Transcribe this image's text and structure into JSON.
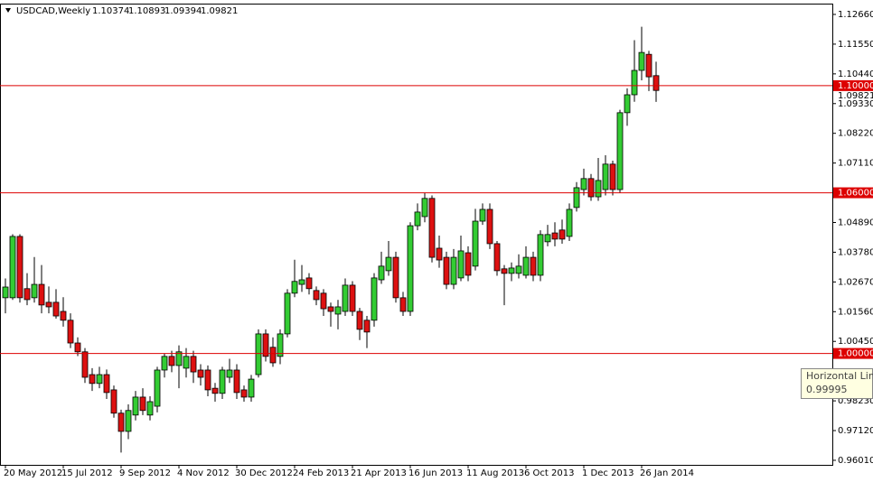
{
  "chart_data": {
    "type": "candlestick",
    "title": "USDCAD,Weekly",
    "categories": [
      "20 May 2012",
      null,
      null,
      null,
      null,
      null,
      null,
      null,
      "15 Jul 2012",
      null,
      null,
      null,
      null,
      null,
      null,
      null,
      "9 Sep 2012",
      null,
      null,
      null,
      null,
      null,
      null,
      null,
      "4 Nov 2012",
      null,
      null,
      null,
      null,
      null,
      null,
      null,
      "30 Dec 2012",
      null,
      null,
      null,
      null,
      null,
      null,
      null,
      "24 Feb 2013",
      null,
      null,
      null,
      null,
      null,
      null,
      null,
      "21 Apr 2013",
      null,
      null,
      null,
      null,
      null,
      null,
      null,
      "16 Jun 2013",
      null,
      null,
      null,
      null,
      null,
      null,
      null,
      "11 Aug 2013",
      null,
      null,
      null,
      null,
      null,
      null,
      null,
      "6 Oct 2013",
      null,
      null,
      null,
      null,
      null,
      null,
      null,
      "1 Dec 2013",
      null,
      null,
      null,
      null,
      null,
      null,
      null,
      "26 Jan 2014",
      null,
      null
    ],
    "ohlc": [
      [
        1.0208,
        1.028,
        1.015,
        1.0248
      ],
      [
        1.0208,
        1.0445,
        1.02,
        1.0437
      ],
      [
        1.0437,
        1.0445,
        1.019,
        1.0208
      ],
      [
        1.0242,
        1.03,
        1.018,
        1.0201
      ],
      [
        1.0208,
        1.036,
        1.019,
        1.0258
      ],
      [
        1.0258,
        1.033,
        1.015,
        1.0181
      ],
      [
        1.0191,
        1.025,
        1.015,
        1.0174
      ],
      [
        1.0191,
        1.024,
        1.013,
        1.014
      ],
      [
        1.0157,
        1.021,
        1.01,
        1.0124
      ],
      [
        1.0124,
        1.015,
        1.002,
        1.0039
      ],
      [
        1.0039,
        1.006,
        0.999,
        1.0006
      ],
      [
        1.0006,
        1.002,
        0.989,
        0.9911
      ],
      [
        0.9921,
        0.9945,
        0.986,
        0.9888
      ],
      [
        0.9888,
        0.995,
        0.987,
        0.9921
      ],
      [
        0.9921,
        0.994,
        0.983,
        0.9854
      ],
      [
        0.9864,
        0.988,
        0.976,
        0.9777
      ],
      [
        0.9777,
        0.979,
        0.963,
        0.9709
      ],
      [
        0.9709,
        0.981,
        0.968,
        0.9787
      ],
      [
        0.977,
        0.986,
        0.975,
        0.9837
      ],
      [
        0.9837,
        0.987,
        0.977,
        0.9787
      ],
      [
        0.977,
        0.984,
        0.975,
        0.982
      ],
      [
        0.9803,
        0.995,
        0.978,
        0.9938
      ],
      [
        0.9938,
        1.0,
        0.991,
        0.9989
      ],
      [
        0.9989,
        1.001,
        0.993,
        0.9955
      ],
      [
        0.9955,
        1.003,
        0.987,
        1.0006
      ],
      [
        0.9945,
        1.002,
        0.991,
        0.9989
      ],
      [
        0.9989,
        1.001,
        0.989,
        0.9931
      ],
      [
        0.9938,
        0.996,
        0.988,
        0.9911
      ],
      [
        0.9938,
        0.9955,
        0.984,
        0.9864
      ],
      [
        0.987,
        0.989,
        0.982,
        0.9851
      ],
      [
        0.9851,
        0.995,
        0.983,
        0.9938
      ],
      [
        0.9911,
        0.998,
        0.989,
        0.9938
      ],
      [
        0.9938,
        0.996,
        0.983,
        0.9854
      ],
      [
        0.9864,
        0.988,
        0.982,
        0.9837
      ],
      [
        0.9837,
        0.992,
        0.982,
        0.9904
      ],
      [
        0.9921,
        1.009,
        0.991,
        1.0073
      ],
      [
        1.0073,
        1.009,
        0.997,
        0.9989
      ],
      [
        1.0023,
        1.006,
        0.995,
        0.9965
      ],
      [
        0.9989,
        1.009,
        0.996,
        1.0073
      ],
      [
        1.0073,
        1.024,
        1.006,
        1.0225
      ],
      [
        1.0225,
        1.035,
        1.021,
        1.0269
      ],
      [
        1.0258,
        1.033,
        1.023,
        1.0275
      ],
      [
        1.0282,
        1.03,
        1.022,
        1.0242
      ],
      [
        1.0235,
        1.025,
        1.018,
        1.0201
      ],
      [
        1.0225,
        1.024,
        1.014,
        1.0167
      ],
      [
        1.0174,
        1.019,
        1.01,
        1.0157
      ],
      [
        1.0147,
        1.02,
        1.009,
        1.0174
      ],
      [
        1.0157,
        1.028,
        1.014,
        1.0255
      ],
      [
        1.0255,
        1.027,
        1.014,
        1.0157
      ],
      [
        1.0157,
        1.017,
        1.005,
        1.009
      ],
      [
        1.0124,
        1.014,
        1.002,
        1.008
      ],
      [
        1.0124,
        1.03,
        1.01,
        1.0282
      ],
      [
        1.0275,
        1.038,
        1.026,
        1.0326
      ],
      [
        1.0309,
        1.042,
        1.029,
        1.0359
      ],
      [
        1.0359,
        1.038,
        1.019,
        1.0208
      ],
      [
        1.0208,
        1.023,
        1.014,
        1.0157
      ],
      [
        1.0157,
        1.049,
        1.014,
        1.0477
      ],
      [
        1.0477,
        1.056,
        1.046,
        1.0528
      ],
      [
        1.0511,
        1.06,
        1.049,
        1.0579
      ],
      [
        1.0579,
        1.059,
        1.034,
        1.0359
      ],
      [
        1.0393,
        1.044,
        1.032,
        1.0349
      ],
      [
        1.0359,
        1.038,
        1.024,
        1.0258
      ],
      [
        1.0258,
        1.039,
        1.024,
        1.0359
      ],
      [
        1.0282,
        1.044,
        1.027,
        1.0383
      ],
      [
        1.0376,
        1.04,
        1.027,
        1.0292
      ],
      [
        1.0326,
        1.054,
        1.031,
        1.0494
      ],
      [
        1.0494,
        1.056,
        1.048,
        1.0538
      ],
      [
        1.0538,
        1.056,
        1.039,
        1.041
      ],
      [
        1.041,
        1.042,
        1.029,
        1.0309
      ],
      [
        1.0316,
        1.033,
        1.018,
        1.0299
      ],
      [
        1.0299,
        1.034,
        1.027,
        1.0319
      ],
      [
        1.0299,
        1.037,
        1.028,
        1.0326
      ],
      [
        1.0292,
        1.04,
        1.028,
        1.0359
      ],
      [
        1.0359,
        1.038,
        1.027,
        1.0292
      ],
      [
        1.0292,
        1.046,
        1.027,
        1.0444
      ],
      [
        1.0417,
        1.048,
        1.04,
        1.0444
      ],
      [
        1.045,
        1.049,
        1.04,
        1.0427
      ],
      [
        1.0461,
        1.05,
        1.041,
        1.0427
      ],
      [
        1.0437,
        1.056,
        1.042,
        1.0538
      ],
      [
        1.0545,
        1.064,
        1.053,
        1.0619
      ],
      [
        1.0612,
        1.069,
        1.059,
        1.0653
      ],
      [
        1.0653,
        1.067,
        1.057,
        1.0585
      ],
      [
        1.0585,
        1.073,
        1.057,
        1.0646
      ],
      [
        1.0612,
        1.074,
        1.059,
        1.0707
      ],
      [
        1.0707,
        1.072,
        1.059,
        1.0612
      ],
      [
        1.0612,
        1.091,
        1.06,
        1.0899
      ],
      [
        1.0899,
        1.099,
        1.085,
        1.0966
      ],
      [
        1.0966,
        1.117,
        1.094,
        1.1057
      ],
      [
        1.1057,
        1.122,
        1.102,
        1.1124
      ],
      [
        1.1117,
        1.113,
        1.098,
        1.1033
      ],
      [
        1.10374,
        1.10893,
        1.09394,
        1.09821
      ]
    ],
    "up_color": "#33cc33",
    "down_color": "#dd1111",
    "ylim": [
      0.9584,
      1.1303
    ],
    "yticks": [
      {
        "value": 0.9601,
        "label": "0.96010"
      },
      {
        "value": 0.9712,
        "label": "0.97120"
      },
      {
        "value": 0.9823,
        "label": "0.98230"
      },
      {
        "value": 1.0045,
        "label": "1.00450"
      },
      {
        "value": 1.0156,
        "label": "1.01560"
      },
      {
        "value": 1.0267,
        "label": "1.02670"
      },
      {
        "value": 1.0378,
        "label": "1.03780"
      },
      {
        "value": 1.0489,
        "label": "1.04890"
      },
      {
        "value": 1.0711,
        "label": "1.07110"
      },
      {
        "value": 1.0822,
        "label": "1.08220"
      },
      {
        "value": 1.0933,
        "label": "1.09330"
      },
      {
        "value": 1.1044,
        "label": "1.10440"
      },
      {
        "value": 1.1155,
        "label": "1.11550"
      },
      {
        "value": 1.1266,
        "label": "1.12660"
      }
    ],
    "current_price": 1.09821,
    "hlines": [
      {
        "value": 1.1,
        "label": "1.10000"
      },
      {
        "value": 1.06,
        "label": "1.06000"
      },
      {
        "value": 1.0,
        "label": "1.00000"
      }
    ],
    "hline_color": "#dd0000",
    "tooltip": {
      "name": "Horizontal Lin",
      "value": 0.99995
    }
  }
}
